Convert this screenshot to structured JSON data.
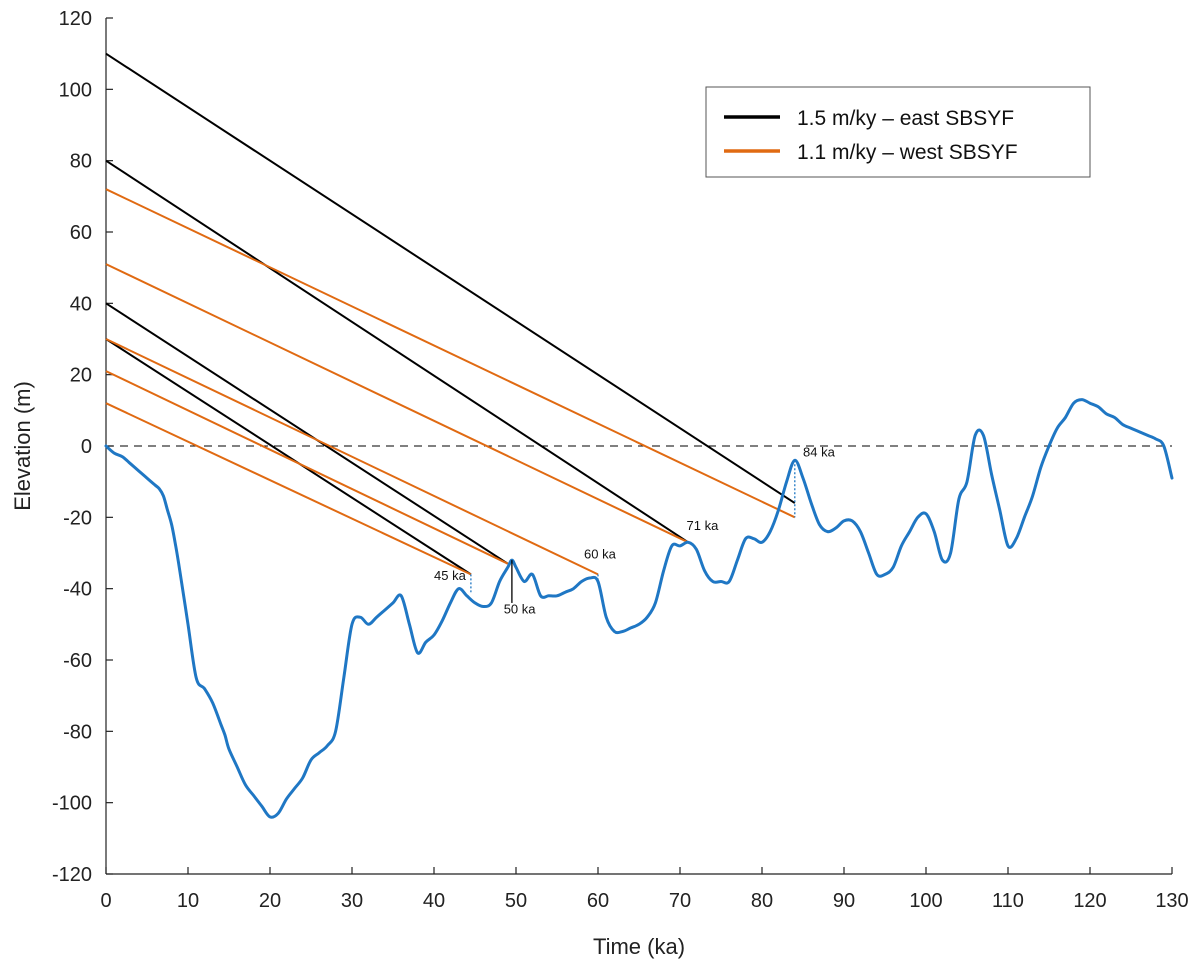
{
  "chart_data": {
    "type": "line",
    "title": "",
    "xlabel": "Time (ka)",
    "ylabel": "Elevation (m)",
    "xlim": [
      0,
      130
    ],
    "ylim": [
      -120,
      120
    ],
    "xticks": [
      0,
      10,
      20,
      30,
      40,
      50,
      60,
      70,
      80,
      90,
      100,
      110,
      120,
      130
    ],
    "yticks": [
      -120,
      -100,
      -80,
      -60,
      -40,
      -20,
      0,
      20,
      40,
      60,
      80,
      100,
      120
    ],
    "grid": false,
    "legend_position": "top-right",
    "colors": {
      "black": "#000000",
      "orange": "#e06a12",
      "blue": "#1f77c4"
    },
    "sea_level_curve": {
      "x": [
        0,
        1,
        2,
        3,
        4,
        5,
        6,
        6.5,
        7,
        7.5,
        8,
        8.5,
        9,
        10,
        11,
        12,
        13,
        14,
        14.5,
        15,
        16,
        17,
        18,
        19,
        20,
        21,
        22,
        23,
        24,
        25,
        26,
        27,
        28,
        29,
        30,
        31,
        32,
        33,
        34,
        35,
        36,
        37,
        38,
        39,
        40,
        41,
        42,
        43,
        44,
        45,
        46,
        47,
        48,
        49,
        49.5,
        50,
        51,
        52,
        53,
        54,
        55,
        56,
        57,
        58,
        59,
        60,
        61,
        62,
        63,
        64,
        65,
        66,
        67,
        68,
        69,
        70,
        71,
        72,
        73,
        74,
        75,
        76,
        77,
        78,
        79,
        80,
        81,
        82,
        83,
        84,
        85,
        86,
        87,
        88,
        89,
        90,
        91,
        92,
        93,
        94,
        95,
        96,
        97,
        98,
        99,
        100,
        101,
        102,
        103,
        104,
        105,
        106,
        107,
        108,
        109,
        110,
        111,
        112,
        113,
        114,
        115,
        116,
        117,
        118,
        119,
        120,
        121,
        122,
        123,
        124,
        125,
        126,
        127,
        128,
        129,
        130
      ],
      "y": [
        0,
        -2,
        -3,
        -5,
        -7,
        -9,
        -11,
        -12,
        -14,
        -18,
        -22,
        -28,
        -35,
        -50,
        -65,
        -68,
        -72,
        -78,
        -81,
        -85,
        -90,
        -95,
        -98,
        -101,
        -104,
        -103,
        -99,
        -96,
        -93,
        -88,
        -86,
        -84,
        -80,
        -65,
        -50,
        -48,
        -50,
        -48,
        -46,
        -44,
        -42,
        -50,
        -58,
        -55,
        -53,
        -49,
        -44,
        -40,
        -42,
        -44,
        -45,
        -44,
        -38,
        -34,
        -32,
        -34,
        -38,
        -36,
        -42,
        -42,
        -42,
        -41,
        -40,
        -38,
        -37,
        -38,
        -48,
        -52,
        -52,
        -51,
        -50,
        -48,
        -44,
        -35,
        -28,
        -28,
        -27,
        -29,
        -35,
        -38,
        -38,
        -38,
        -32,
        -26,
        -26,
        -27,
        -24,
        -18,
        -10,
        -4,
        -9,
        -16,
        -22,
        -24,
        -23,
        -21,
        -21,
        -24,
        -30,
        -36,
        -36,
        -34,
        -28,
        -24,
        -20,
        -19,
        -24,
        -32,
        -30,
        -15,
        -10,
        3,
        3,
        -8,
        -18,
        -28,
        -26,
        -20,
        -14,
        -6,
        0,
        5,
        8,
        12,
        13,
        12,
        11,
        9,
        8,
        6,
        5,
        4,
        3,
        2,
        0,
        -9
      ]
    },
    "reference_line": {
      "y": 0,
      "style": "dashed"
    },
    "terrace_lines": [
      {
        "series": "1.5 m/ky – east SBSYF",
        "color": "black",
        "x": [
          0,
          84
        ],
        "y": [
          110,
          -16
        ]
      },
      {
        "series": "1.5 m/ky – east SBSYF",
        "color": "black",
        "x": [
          0,
          71
        ],
        "y": [
          80,
          -27
        ]
      },
      {
        "series": "1.5 m/ky – east SBSYF",
        "color": "black",
        "x": [
          0,
          49
        ],
        "y": [
          40,
          -33
        ]
      },
      {
        "series": "1.5 m/ky – east SBSYF",
        "color": "black",
        "x": [
          0,
          44.5
        ],
        "y": [
          30,
          -36
        ]
      },
      {
        "series": "1.1 m/ky – west SBSYF",
        "color": "orange",
        "x": [
          0,
          84
        ],
        "y": [
          72,
          -20
        ]
      },
      {
        "series": "1.1 m/ky – west SBSYF",
        "color": "orange",
        "x": [
          0,
          71
        ],
        "y": [
          51,
          -27
        ]
      },
      {
        "series": "1.1 m/ky – west SBSYF",
        "color": "orange",
        "x": [
          0,
          60
        ],
        "y": [
          30,
          -36
        ]
      },
      {
        "series": "1.1 m/ky – west SBSYF",
        "color": "orange",
        "x": [
          0,
          49
        ],
        "y": [
          21,
          -33
        ]
      },
      {
        "series": "1.1 m/ky – west SBSYF",
        "color": "orange",
        "x": [
          0,
          44.5
        ],
        "y": [
          12,
          -36
        ]
      }
    ],
    "markers": [
      {
        "x": 44.5,
        "y_top": -36,
        "y_bottom": -41,
        "color": "blue",
        "style": "dotted"
      },
      {
        "x": 49.5,
        "y_top": -32,
        "y_bottom": -44,
        "color": "black",
        "style": "solid"
      },
      {
        "x": 60,
        "y_top": -36,
        "y_bottom": -38,
        "color": "blue",
        "style": "dotted"
      },
      {
        "x": 84,
        "y_top": -4,
        "y_bottom": -20,
        "color": "blue",
        "style": "dotted"
      }
    ],
    "annotations": [
      {
        "text": "45 ka",
        "x": 40,
        "y": -37.5
      },
      {
        "text": "50 ka",
        "x": 48.5,
        "y": -47
      },
      {
        "text": "60 ka",
        "x": 58.3,
        "y": -31.5
      },
      {
        "text": "71 ka",
        "x": 70.8,
        "y": -23.5
      },
      {
        "text": "84 ka",
        "x": 85,
        "y": -3
      }
    ],
    "legend": [
      {
        "label": "1.5 m/ky  –  east SBSYF",
        "color": "black"
      },
      {
        "label": "1.1 m/ky  –  west SBSYF",
        "color": "orange"
      }
    ]
  }
}
